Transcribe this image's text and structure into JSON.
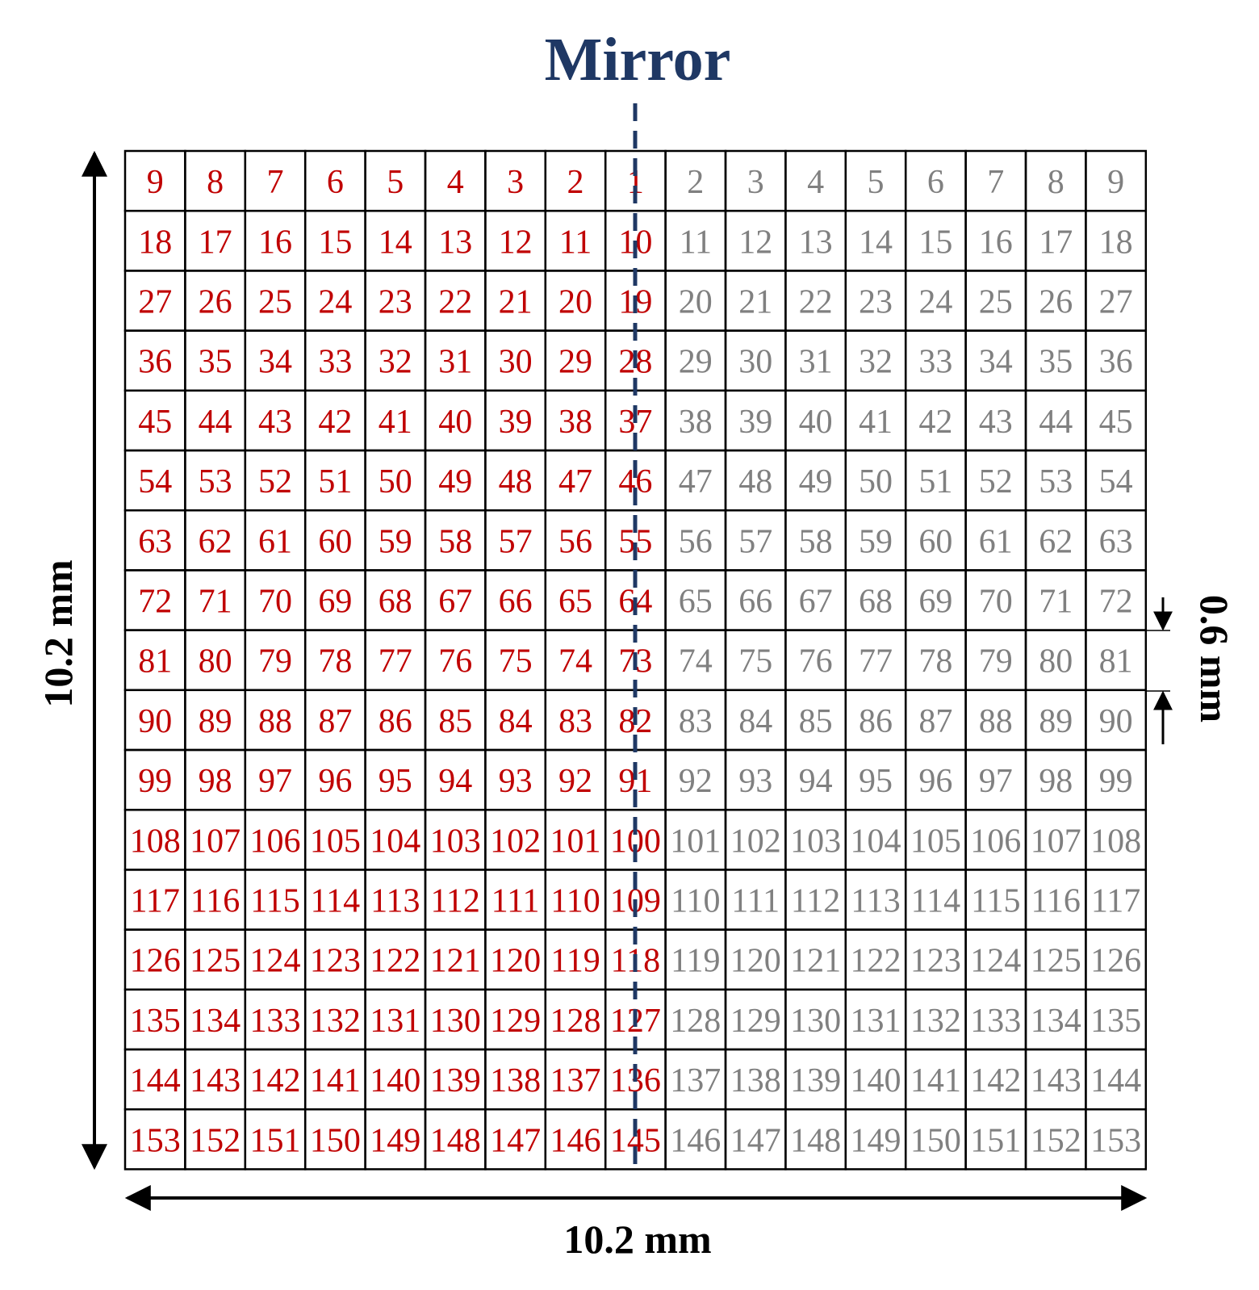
{
  "title": "Mirror",
  "width_label": "10.2 mm",
  "height_label": "10.2 mm",
  "pitch_label": "0.6 mm",
  "colors": {
    "mirrored": "#c00000",
    "original": "#808080",
    "mirror_line": "#1f3864"
  },
  "grid": {
    "rows": [
      {
        "left": [
          9,
          8,
          7,
          6,
          5,
          4,
          3,
          2,
          1
        ],
        "right": [
          2,
          3,
          4,
          5,
          6,
          7,
          8,
          9
        ]
      },
      {
        "left": [
          18,
          17,
          16,
          15,
          14,
          13,
          12,
          11,
          10
        ],
        "right": [
          11,
          12,
          13,
          14,
          15,
          16,
          17,
          18
        ]
      },
      {
        "left": [
          27,
          26,
          25,
          24,
          23,
          22,
          21,
          20,
          19
        ],
        "right": [
          20,
          21,
          22,
          23,
          24,
          25,
          26,
          27
        ]
      },
      {
        "left": [
          36,
          35,
          34,
          33,
          32,
          31,
          30,
          29,
          28
        ],
        "right": [
          29,
          30,
          31,
          32,
          33,
          34,
          35,
          36
        ]
      },
      {
        "left": [
          45,
          44,
          43,
          42,
          41,
          40,
          39,
          38,
          37
        ],
        "right": [
          38,
          39,
          40,
          41,
          42,
          43,
          44,
          45
        ]
      },
      {
        "left": [
          54,
          53,
          52,
          51,
          50,
          49,
          48,
          47,
          46
        ],
        "right": [
          47,
          48,
          49,
          50,
          51,
          52,
          53,
          54
        ]
      },
      {
        "left": [
          63,
          62,
          61,
          60,
          59,
          58,
          57,
          56,
          55
        ],
        "right": [
          56,
          57,
          58,
          59,
          60,
          61,
          62,
          63
        ]
      },
      {
        "left": [
          72,
          71,
          70,
          69,
          68,
          67,
          66,
          65,
          64
        ],
        "right": [
          65,
          66,
          67,
          68,
          69,
          70,
          71,
          72
        ]
      },
      {
        "left": [
          81,
          80,
          79,
          78,
          77,
          76,
          75,
          74,
          73
        ],
        "right": [
          74,
          75,
          76,
          77,
          78,
          79,
          80,
          81
        ]
      },
      {
        "left": [
          90,
          89,
          88,
          87,
          86,
          85,
          84,
          83,
          82
        ],
        "right": [
          83,
          84,
          85,
          86,
          87,
          88,
          89,
          90
        ]
      },
      {
        "left": [
          99,
          98,
          97,
          96,
          95,
          94,
          93,
          92,
          91
        ],
        "right": [
          92,
          93,
          94,
          95,
          96,
          97,
          98,
          99
        ]
      },
      {
        "left": [
          108,
          107,
          106,
          105,
          104,
          103,
          102,
          101,
          100
        ],
        "right": [
          101,
          102,
          103,
          104,
          105,
          106,
          107,
          108
        ]
      },
      {
        "left": [
          117,
          116,
          115,
          114,
          113,
          112,
          111,
          110,
          109
        ],
        "right": [
          110,
          111,
          112,
          113,
          114,
          115,
          116,
          117
        ]
      },
      {
        "left": [
          126,
          125,
          124,
          123,
          122,
          121,
          120,
          119,
          118
        ],
        "right": [
          119,
          120,
          121,
          122,
          123,
          124,
          125,
          126
        ]
      },
      {
        "left": [
          135,
          134,
          133,
          132,
          131,
          130,
          129,
          128,
          127
        ],
        "right": [
          128,
          129,
          130,
          131,
          132,
          133,
          134,
          135
        ]
      },
      {
        "left": [
          144,
          143,
          142,
          141,
          140,
          139,
          138,
          137,
          136
        ],
        "right": [
          137,
          138,
          139,
          140,
          141,
          142,
          143,
          144
        ]
      },
      {
        "left": [
          153,
          152,
          151,
          150,
          149,
          148,
          147,
          146,
          145
        ],
        "right": [
          146,
          147,
          148,
          149,
          150,
          151,
          152,
          153
        ]
      }
    ]
  }
}
